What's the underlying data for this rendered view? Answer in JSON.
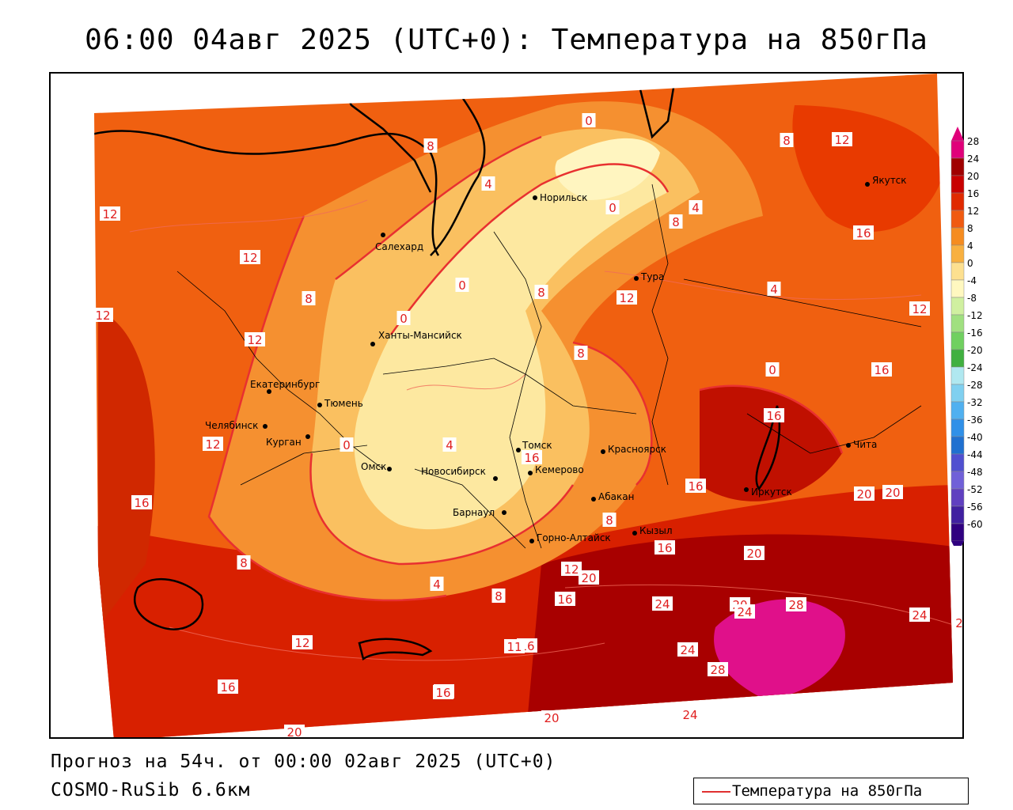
{
  "title": "06:00 04авг 2025 (UTC+0): Температура на 850гПа",
  "footer": {
    "forecast": "Прогноз на 54ч. от 00:00 02авг 2025 (UTC+0)",
    "model": "COSMO-RuSib 6.6км"
  },
  "legend": {
    "label": "Температура на 850гПа",
    "line_color": "#e03030"
  },
  "colorbar": {
    "ticks": [
      "28",
      "24",
      "20",
      "16",
      "12",
      "8",
      "4",
      "0",
      "-4",
      "-8",
      "-12",
      "-16",
      "-20",
      "-24",
      "-28",
      "-32",
      "-36",
      "-40",
      "-44",
      "-48",
      "-52",
      "-56",
      "-60"
    ],
    "colors": [
      "#e0007a",
      "#a00000",
      "#c80000",
      "#e02a00",
      "#f05a10",
      "#f58c20",
      "#f8b040",
      "#fde090",
      "#fff8c0",
      "#d0f0a0",
      "#a0e080",
      "#70d060",
      "#40b040",
      "#b0e8f0",
      "#80d0f0",
      "#50b0f0",
      "#3090e8",
      "#2070d0",
      "#5050d0",
      "#7060d8",
      "#6040c0",
      "#4020a0",
      "#300080"
    ]
  },
  "cities": [
    {
      "name": "Норильск"
    },
    {
      "name": "Салехард"
    },
    {
      "name": "Тура"
    },
    {
      "name": "Якутск"
    },
    {
      "name": "Ханты-Мансийск"
    },
    {
      "name": "Екатеринбург"
    },
    {
      "name": "Тюмень"
    },
    {
      "name": "Челябинск"
    },
    {
      "name": "Курган"
    },
    {
      "name": "Омск"
    },
    {
      "name": "Новосибирск"
    },
    {
      "name": "Томск"
    },
    {
      "name": "Кемерово"
    },
    {
      "name": "Красноярск"
    },
    {
      "name": "Барнаул"
    },
    {
      "name": "Абакан"
    },
    {
      "name": "Горно-Алтайск"
    },
    {
      "name": "Кызыл"
    },
    {
      "name": "Иркутск"
    },
    {
      "name": "Чита"
    }
  ],
  "contour_labels": [
    "0",
    "8",
    "4",
    "4",
    "8",
    "12",
    "0",
    "4",
    "8",
    "12",
    "12",
    "16",
    "8",
    "8",
    "0",
    "0",
    "12",
    "4",
    "12",
    "12",
    "16",
    "12",
    "8",
    "0",
    "0",
    "4",
    "16",
    "12",
    "8",
    "16",
    "16",
    "16",
    "20",
    "20",
    "8",
    "4",
    "8",
    "16",
    "12",
    "20",
    "16",
    "20",
    "24",
    "20",
    "28",
    "24",
    "12",
    "16",
    "16",
    "20",
    "24",
    "28",
    "24",
    "16",
    "20",
    "20",
    "24",
    "2",
    "11"
  ]
}
